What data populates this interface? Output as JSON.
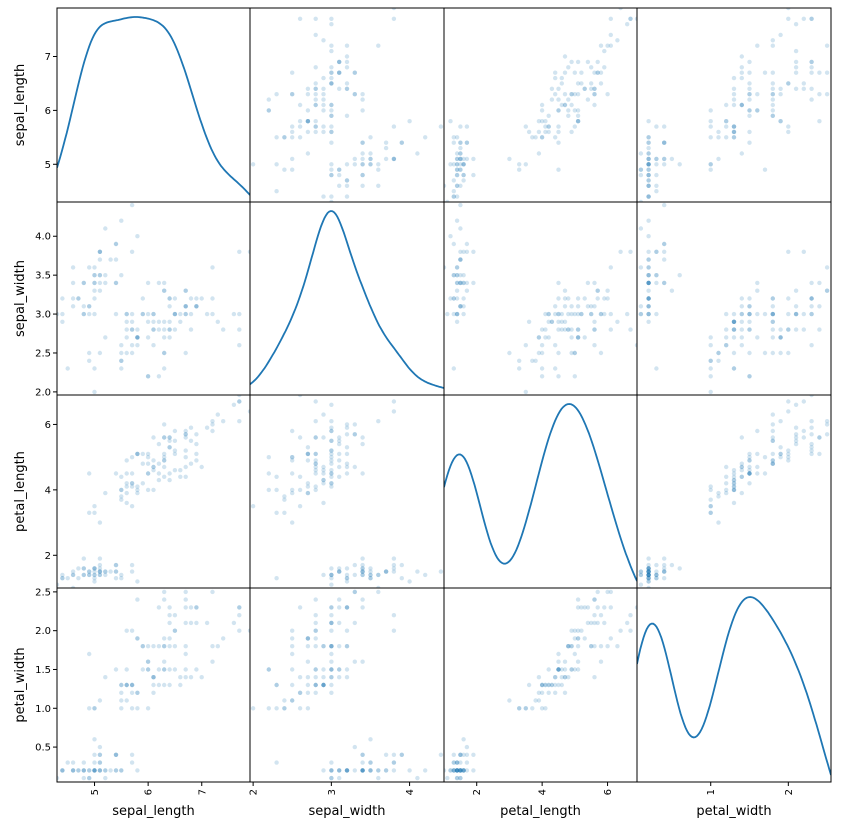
{
  "chart_data": {
    "type": "scatter-matrix",
    "variables": [
      "sepal_length",
      "sepal_width",
      "petal_length",
      "petal_width"
    ],
    "ranges": {
      "sepal_length": [
        4.3,
        7.9
      ],
      "sepal_width": [
        1.96,
        4.44
      ],
      "petal_length": [
        1.0,
        6.9
      ],
      "petal_width": [
        0.05,
        2.55
      ]
    },
    "ticks": {
      "sepal_length": [
        5,
        6,
        7
      ],
      "sepal_width": [
        2.0,
        2.5,
        3.0,
        3.5,
        4.0
      ],
      "petal_length": [
        2,
        4,
        6
      ],
      "petal_width": [
        0.5,
        1.0,
        1.5,
        2.0,
        2.5
      ]
    },
    "tick_labels": {
      "sepal_length": [
        "5",
        "6",
        "7"
      ],
      "sepal_width_y": [
        "2.0",
        "2.5",
        "3.0",
        "3.5",
        "4.0"
      ],
      "sepal_width_x": [
        "2",
        "3",
        "4"
      ],
      "petal_length": [
        "2",
        "4",
        "6"
      ],
      "petal_width_y": [
        "0.5",
        "1.0",
        "1.5",
        "2.0",
        "2.5"
      ],
      "petal_width_x": [
        "1",
        "2"
      ]
    },
    "tick_values_x": {
      "sepal_length": [
        5,
        6,
        7
      ],
      "sepal_width": [
        2,
        3,
        4
      ],
      "petal_length": [
        2,
        4,
        6
      ],
      "petal_width": [
        1,
        2
      ]
    },
    "diagonal": "kde",
    "point_color": "#1f77b4",
    "point_alpha": 0.2,
    "line_color": "#1f77b4",
    "records": [
      [
        5.1,
        3.5,
        1.4,
        0.2
      ],
      [
        4.9,
        3.0,
        1.4,
        0.2
      ],
      [
        4.7,
        3.2,
        1.3,
        0.2
      ],
      [
        4.6,
        3.1,
        1.5,
        0.2
      ],
      [
        5.0,
        3.6,
        1.4,
        0.2
      ],
      [
        5.4,
        3.9,
        1.7,
        0.4
      ],
      [
        4.6,
        3.4,
        1.4,
        0.3
      ],
      [
        5.0,
        3.4,
        1.5,
        0.2
      ],
      [
        4.4,
        2.9,
        1.4,
        0.2
      ],
      [
        4.9,
        3.1,
        1.5,
        0.1
      ],
      [
        5.4,
        3.7,
        1.5,
        0.2
      ],
      [
        4.8,
        3.4,
        1.6,
        0.2
      ],
      [
        4.8,
        3.0,
        1.4,
        0.1
      ],
      [
        4.3,
        3.0,
        1.1,
        0.1
      ],
      [
        5.8,
        4.0,
        1.2,
        0.2
      ],
      [
        5.7,
        4.4,
        1.5,
        0.4
      ],
      [
        5.4,
        3.9,
        1.3,
        0.4
      ],
      [
        5.1,
        3.5,
        1.4,
        0.3
      ],
      [
        5.7,
        3.8,
        1.7,
        0.3
      ],
      [
        5.1,
        3.8,
        1.5,
        0.3
      ],
      [
        5.4,
        3.4,
        1.7,
        0.2
      ],
      [
        5.1,
        3.7,
        1.5,
        0.4
      ],
      [
        4.6,
        3.6,
        1.0,
        0.2
      ],
      [
        5.1,
        3.3,
        1.7,
        0.5
      ],
      [
        4.8,
        3.4,
        1.9,
        0.2
      ],
      [
        5.0,
        3.0,
        1.6,
        0.2
      ],
      [
        5.0,
        3.4,
        1.6,
        0.4
      ],
      [
        5.2,
        3.5,
        1.5,
        0.2
      ],
      [
        5.2,
        3.4,
        1.4,
        0.2
      ],
      [
        4.7,
        3.2,
        1.6,
        0.2
      ],
      [
        4.8,
        3.1,
        1.6,
        0.2
      ],
      [
        5.4,
        3.4,
        1.5,
        0.4
      ],
      [
        5.2,
        4.1,
        1.5,
        0.1
      ],
      [
        5.5,
        4.2,
        1.4,
        0.2
      ],
      [
        4.9,
        3.1,
        1.5,
        0.2
      ],
      [
        5.0,
        3.2,
        1.2,
        0.2
      ],
      [
        5.5,
        3.5,
        1.3,
        0.2
      ],
      [
        4.9,
        3.6,
        1.4,
        0.1
      ],
      [
        4.4,
        3.0,
        1.3,
        0.2
      ],
      [
        5.1,
        3.4,
        1.5,
        0.2
      ],
      [
        5.0,
        3.5,
        1.3,
        0.3
      ],
      [
        4.5,
        2.3,
        1.3,
        0.3
      ],
      [
        4.4,
        3.2,
        1.3,
        0.2
      ],
      [
        5.0,
        3.5,
        1.6,
        0.6
      ],
      [
        5.1,
        3.8,
        1.9,
        0.4
      ],
      [
        4.8,
        3.0,
        1.4,
        0.3
      ],
      [
        5.1,
        3.8,
        1.6,
        0.2
      ],
      [
        4.6,
        3.2,
        1.4,
        0.2
      ],
      [
        5.3,
        3.7,
        1.5,
        0.2
      ],
      [
        5.0,
        3.3,
        1.4,
        0.2
      ],
      [
        7.0,
        3.2,
        4.7,
        1.4
      ],
      [
        6.4,
        3.2,
        4.5,
        1.5
      ],
      [
        6.9,
        3.1,
        4.9,
        1.5
      ],
      [
        5.5,
        2.3,
        4.0,
        1.3
      ],
      [
        6.5,
        2.8,
        4.6,
        1.5
      ],
      [
        5.7,
        2.8,
        4.5,
        1.3
      ],
      [
        6.3,
        3.3,
        4.7,
        1.6
      ],
      [
        4.9,
        2.4,
        3.3,
        1.0
      ],
      [
        6.6,
        2.9,
        4.6,
        1.3
      ],
      [
        5.2,
        2.7,
        3.9,
        1.4
      ],
      [
        5.0,
        2.0,
        3.5,
        1.0
      ],
      [
        5.9,
        3.0,
        4.2,
        1.5
      ],
      [
        6.0,
        2.2,
        4.0,
        1.0
      ],
      [
        6.1,
        2.9,
        4.7,
        1.4
      ],
      [
        5.6,
        2.9,
        3.6,
        1.3
      ],
      [
        6.7,
        3.1,
        4.4,
        1.4
      ],
      [
        5.6,
        3.0,
        4.5,
        1.5
      ],
      [
        5.8,
        2.7,
        4.1,
        1.0
      ],
      [
        6.2,
        2.2,
        4.5,
        1.5
      ],
      [
        5.6,
        2.5,
        3.9,
        1.1
      ],
      [
        5.9,
        3.2,
        4.8,
        1.8
      ],
      [
        6.1,
        2.8,
        4.0,
        1.3
      ],
      [
        6.3,
        2.5,
        4.9,
        1.5
      ],
      [
        6.1,
        2.8,
        4.7,
        1.2
      ],
      [
        6.4,
        2.9,
        4.3,
        1.3
      ],
      [
        6.6,
        3.0,
        4.4,
        1.4
      ],
      [
        6.8,
        2.8,
        4.8,
        1.4
      ],
      [
        6.7,
        3.0,
        5.0,
        1.7
      ],
      [
        6.0,
        2.9,
        4.5,
        1.5
      ],
      [
        5.7,
        2.6,
        3.5,
        1.0
      ],
      [
        5.5,
        2.4,
        3.8,
        1.1
      ],
      [
        5.5,
        2.4,
        3.7,
        1.0
      ],
      [
        5.8,
        2.7,
        3.9,
        1.2
      ],
      [
        6.0,
        2.7,
        5.1,
        1.6
      ],
      [
        5.4,
        3.0,
        4.5,
        1.5
      ],
      [
        6.0,
        3.4,
        4.5,
        1.6
      ],
      [
        6.7,
        3.1,
        4.7,
        1.5
      ],
      [
        6.3,
        2.3,
        4.4,
        1.3
      ],
      [
        5.6,
        3.0,
        4.1,
        1.3
      ],
      [
        5.5,
        2.5,
        4.0,
        1.3
      ],
      [
        5.5,
        2.6,
        4.4,
        1.2
      ],
      [
        6.1,
        3.0,
        4.6,
        1.4
      ],
      [
        5.8,
        2.6,
        4.0,
        1.2
      ],
      [
        5.0,
        2.3,
        3.3,
        1.0
      ],
      [
        5.6,
        2.7,
        4.2,
        1.3
      ],
      [
        5.7,
        3.0,
        4.2,
        1.2
      ],
      [
        5.7,
        2.9,
        4.2,
        1.3
      ],
      [
        6.2,
        2.9,
        4.3,
        1.3
      ],
      [
        5.1,
        2.5,
        3.0,
        1.1
      ],
      [
        5.7,
        2.8,
        4.1,
        1.3
      ],
      [
        6.3,
        3.3,
        6.0,
        2.5
      ],
      [
        5.8,
        2.7,
        5.1,
        1.9
      ],
      [
        7.1,
        3.0,
        5.9,
        2.1
      ],
      [
        6.3,
        2.9,
        5.6,
        1.8
      ],
      [
        6.5,
        3.0,
        5.8,
        2.2
      ],
      [
        7.6,
        3.0,
        6.6,
        2.1
      ],
      [
        4.9,
        2.5,
        4.5,
        1.7
      ],
      [
        7.3,
        2.9,
        6.3,
        1.8
      ],
      [
        6.7,
        2.5,
        5.8,
        1.8
      ],
      [
        7.2,
        3.6,
        6.1,
        2.5
      ],
      [
        6.5,
        3.2,
        5.1,
        2.0
      ],
      [
        6.4,
        2.7,
        5.3,
        1.9
      ],
      [
        6.8,
        3.0,
        5.5,
        2.1
      ],
      [
        5.7,
        2.5,
        5.0,
        2.0
      ],
      [
        5.8,
        2.8,
        5.1,
        2.4
      ],
      [
        6.4,
        3.2,
        5.3,
        2.3
      ],
      [
        6.5,
        3.0,
        5.5,
        1.8
      ],
      [
        7.7,
        3.8,
        6.7,
        2.2
      ],
      [
        7.7,
        2.6,
        6.9,
        2.3
      ],
      [
        6.0,
        2.2,
        5.0,
        1.5
      ],
      [
        6.9,
        3.2,
        5.7,
        2.3
      ],
      [
        5.6,
        2.8,
        4.9,
        2.0
      ],
      [
        7.7,
        2.8,
        6.7,
        2.0
      ],
      [
        6.3,
        2.7,
        4.9,
        1.8
      ],
      [
        6.7,
        3.3,
        5.7,
        2.1
      ],
      [
        7.2,
        3.2,
        6.0,
        1.8
      ],
      [
        6.2,
        2.8,
        4.8,
        1.8
      ],
      [
        6.1,
        3.0,
        4.9,
        1.8
      ],
      [
        6.4,
        2.8,
        5.6,
        2.1
      ],
      [
        7.2,
        3.0,
        5.8,
        1.6
      ],
      [
        7.4,
        2.8,
        6.1,
        1.9
      ],
      [
        7.9,
        3.8,
        6.4,
        2.0
      ],
      [
        6.4,
        2.8,
        5.6,
        2.2
      ],
      [
        6.3,
        2.8,
        5.1,
        1.5
      ],
      [
        6.1,
        2.6,
        5.6,
        1.4
      ],
      [
        7.7,
        3.0,
        6.1,
        2.3
      ],
      [
        6.3,
        3.4,
        5.6,
        2.4
      ],
      [
        6.4,
        3.1,
        5.5,
        1.8
      ],
      [
        6.0,
        3.0,
        4.8,
        1.8
      ],
      [
        6.9,
        3.1,
        5.4,
        2.1
      ],
      [
        6.7,
        3.1,
        5.6,
        2.4
      ],
      [
        6.9,
        3.1,
        5.1,
        2.3
      ],
      [
        5.8,
        2.7,
        5.1,
        1.9
      ],
      [
        6.8,
        3.2,
        5.9,
        2.3
      ],
      [
        6.7,
        3.3,
        5.7,
        2.5
      ],
      [
        6.7,
        3.0,
        5.2,
        2.3
      ],
      [
        6.3,
        2.5,
        5.0,
        1.9
      ],
      [
        6.5,
        3.0,
        5.2,
        2.0
      ],
      [
        6.2,
        3.4,
        5.4,
        2.3
      ],
      [
        5.9,
        3.0,
        5.1,
        1.8
      ]
    ]
  }
}
